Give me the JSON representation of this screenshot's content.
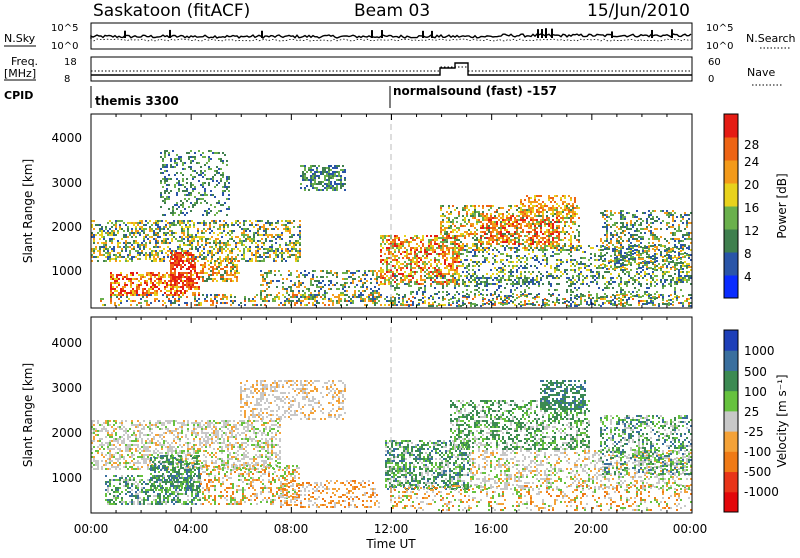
{
  "header": {
    "title": "Saskatoon (fitACF)",
    "beam": "Beam 03",
    "date": "15/Jun/2010"
  },
  "status_panels": {
    "nsky_label": "N.Sky",
    "nsky_ticks": [
      "10^5",
      "10^0"
    ],
    "nsearch_label": "N.Search",
    "nsearch_ticks": [
      "10^5",
      "10^0"
    ],
    "freq_label_1": "Freq.",
    "freq_label_2": "[MHz]",
    "freq_ticks": [
      "18",
      "8"
    ],
    "nave_label": "Nave",
    "nave_ticks": [
      "60",
      "0"
    ],
    "cpid_label": "CPID",
    "cpid_modes": [
      "themis 3300",
      "normalsound (fast) -157"
    ]
  },
  "chart_data": [
    {
      "type": "heatmap",
      "name": "Power",
      "ylabel": "Slant Range [km]",
      "xlabel": "",
      "ylim": [
        180,
        4590
      ],
      "yticks": [
        "1000",
        "2000",
        "3000",
        "4000"
      ],
      "xlim": [
        "00:00",
        "24:00"
      ],
      "colorbar_label": "Power [dB]",
      "colorbar_ticks": [
        "4",
        "8",
        "12",
        "16",
        "20",
        "24",
        "28"
      ],
      "colorbar_colors": [
        "#0a2cff",
        "#2a55a8",
        "#3f7f4e",
        "#6ab04c",
        "#e8d21c",
        "#f39a1a",
        "#ee6414",
        "#e51c14"
      ]
    },
    {
      "type": "heatmap",
      "name": "Velocity",
      "ylabel": "Slant Range [km]",
      "xlabel": "Time UT",
      "ylim": [
        180,
        4590
      ],
      "yticks": [
        "1000",
        "2000",
        "3000",
        "4000"
      ],
      "xlim": [
        "00:00",
        "24:00"
      ],
      "xticks": [
        "00:00",
        "04:00",
        "08:00",
        "12:00",
        "16:00",
        "20:00",
        "00:00"
      ],
      "colorbar_label": "Velocity [m s⁻¹]",
      "colorbar_ticks": [
        "1000",
        "500",
        "100",
        "25",
        "-25",
        "-100",
        "-500",
        "-1000"
      ],
      "colorbar_colors": [
        "#1e3fb8",
        "#3a6f9e",
        "#3c8a52",
        "#66c23e",
        "#c8c8c8",
        "#f4a238",
        "#ef7a16",
        "#e83418",
        "#e3070a"
      ]
    }
  ]
}
